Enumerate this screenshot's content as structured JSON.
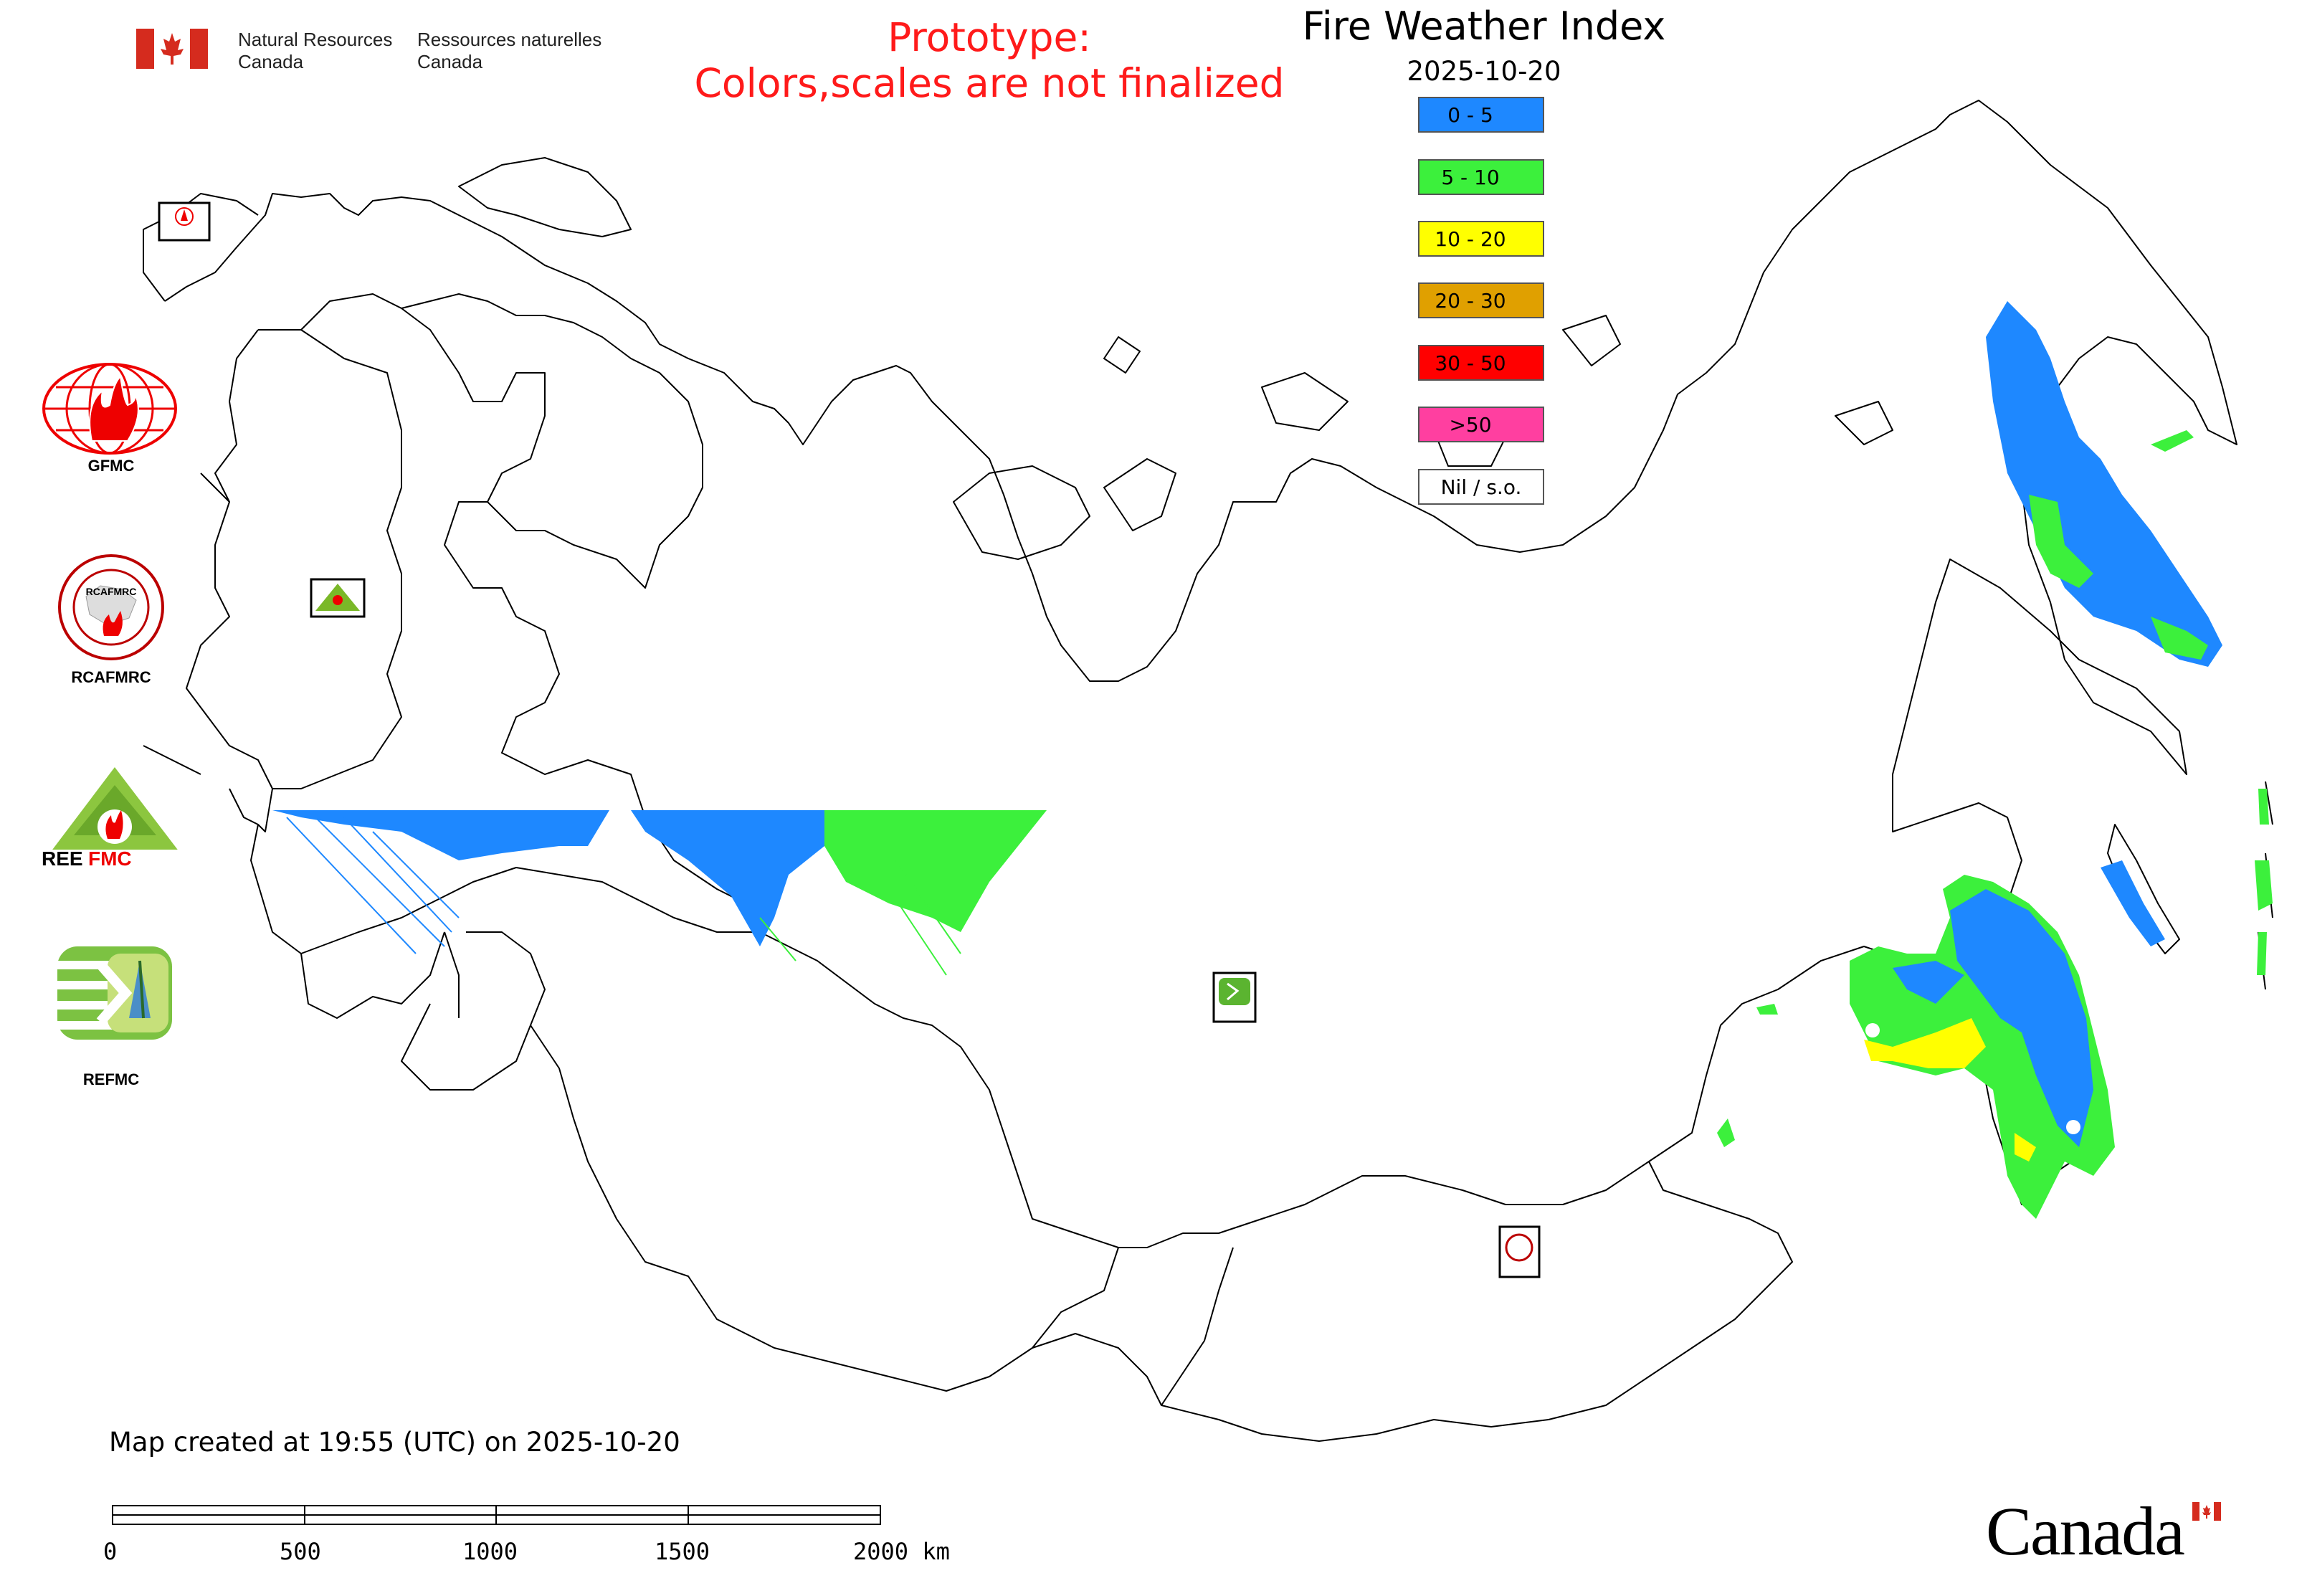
{
  "header": {
    "agency_en_line1": "Natural Resources",
    "agency_en_line2": "Canada",
    "agency_fr_line1": "Ressources naturelles",
    "agency_fr_line2": "Canada"
  },
  "prototype_notice": {
    "line1": "Prototype:",
    "line2": "Colors,scales are not finalized",
    "color": "#ff1a1a"
  },
  "map_title": "Fire Weather Index",
  "map_date": "2025-10-20",
  "legend": [
    {
      "label": "0 - 5",
      "color": "#1e88ff"
    },
    {
      "label": "5 - 10",
      "color": "#3cf03c"
    },
    {
      "label": "10 - 20",
      "color": "#ffff00"
    },
    {
      "label": "20 - 30",
      "color": "#e0a000"
    },
    {
      "label": "30 - 50",
      "color": "#ff0000"
    },
    {
      "label": ">50",
      "color": "#ff3fa0"
    },
    {
      "label": "Nil / s.o.",
      "color": "#ffffff"
    }
  ],
  "logos": [
    {
      "label": "GFMC",
      "icon": "gfmc-logo"
    },
    {
      "label": "RCAFMRC",
      "icon": "rcafmrc-logo"
    },
    {
      "label": "",
      "icon": "reefmc-logo"
    },
    {
      "label": "REFMC",
      "icon": "refmc-logo"
    }
  ],
  "map_markers": [
    {
      "name": "GFMC",
      "icon": "gfmc-marker"
    },
    {
      "name": "REEFMC",
      "icon": "reefmc-marker"
    },
    {
      "name": "REFMC",
      "icon": "refmc-marker"
    },
    {
      "name": "RCAFMRC",
      "icon": "rcafmrc-marker"
    }
  ],
  "footer": {
    "created": "Map created at 19:55 (UTC) on 2025-10-20",
    "scale_labels": [
      "0",
      "500",
      "1000",
      "1500",
      "2000 km"
    ],
    "wordmark": "Canada"
  }
}
